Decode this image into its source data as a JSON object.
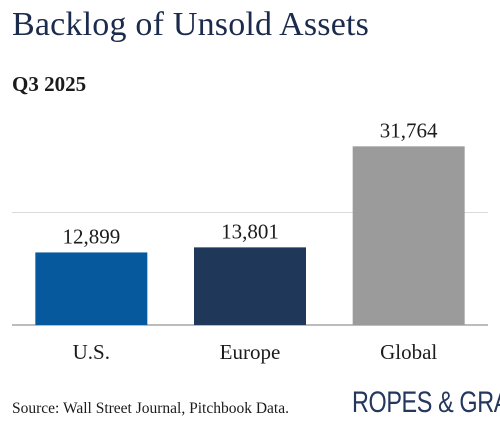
{
  "chart_data": {
    "type": "bar",
    "title": "Backlog of Unsold Assets",
    "subtitle": "Q3 2025",
    "categories": [
      "U.S.",
      "Europe",
      "Global"
    ],
    "values": [
      12899,
      13801,
      31764
    ],
    "value_labels": [
      "12,899",
      "13,801",
      "31,764"
    ],
    "bar_colors": [
      "#06599c",
      "#1f3759",
      "#9b9b9b"
    ],
    "ylim": [
      0,
      40000
    ],
    "gridlines": [
      20000
    ],
    "xlabel": "",
    "ylabel": "",
    "legend": "none",
    "grid": true
  },
  "footer": {
    "source": "Source: Wall Street Journal, Pitchbook Data.",
    "logo_text": "ROPES & GRAY"
  }
}
